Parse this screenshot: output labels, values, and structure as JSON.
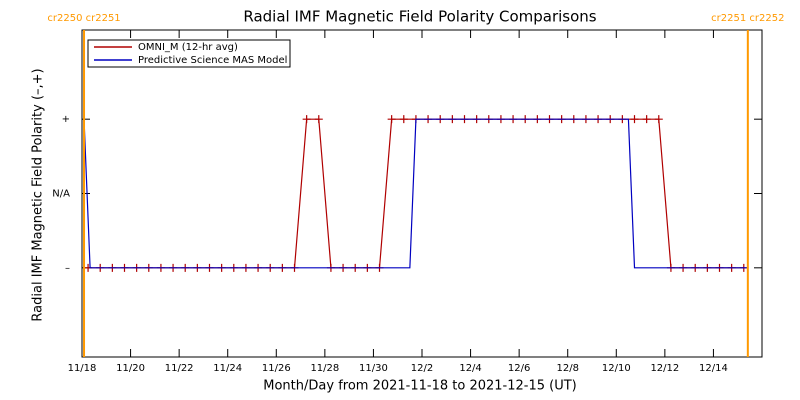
{
  "chart_data": {
    "type": "line",
    "title": "Radial IMF Magnetic Field Polarity Comparisons",
    "xlabel": "Month/Day from 2021-11-18 to 2021-12-15 (UT)",
    "ylabel": "Radial IMF Magnetic Field Polarity (–,+)",
    "xlim": [
      "2021-11-18 00:00",
      "2021-12-16 00:00"
    ],
    "xticks": [
      {
        "value": "2021-11-18 00:00",
        "label": "11/18"
      },
      {
        "value": "2021-11-20 00:00",
        "label": "11/20"
      },
      {
        "value": "2021-11-22 00:00",
        "label": "11/22"
      },
      {
        "value": "2021-11-24 00:00",
        "label": "11/24"
      },
      {
        "value": "2021-11-26 00:00",
        "label": "11/26"
      },
      {
        "value": "2021-11-28 00:00",
        "label": "11/28"
      },
      {
        "value": "2021-11-30 00:00",
        "label": "11/30"
      },
      {
        "value": "2021-12-02 00:00",
        "label": "12/2"
      },
      {
        "value": "2021-12-04 00:00",
        "label": "12/4"
      },
      {
        "value": "2021-12-06 00:00",
        "label": "12/6"
      },
      {
        "value": "2021-12-08 00:00",
        "label": "12/8"
      },
      {
        "value": "2021-12-10 00:00",
        "label": "12/10"
      },
      {
        "value": "2021-12-12 00:00",
        "label": "12/12"
      },
      {
        "value": "2021-12-14 00:00",
        "label": "12/14"
      }
    ],
    "ylim": [
      -2.2,
      2.2
    ],
    "yticks": [
      {
        "value": 1,
        "label": "+"
      },
      {
        "value": 0,
        "label": "N/A"
      },
      {
        "value": -1,
        "label": "–"
      }
    ],
    "legend": "upper left",
    "series": [
      {
        "name": "OMNI_M (12-hr avg)",
        "color": "#b00000",
        "marker": "+",
        "x": [
          "2021-11-18 06:00",
          "2021-11-18 18:00",
          "2021-11-19 06:00",
          "2021-11-19 18:00",
          "2021-11-20 06:00",
          "2021-11-20 18:00",
          "2021-11-21 06:00",
          "2021-11-21 18:00",
          "2021-11-22 06:00",
          "2021-11-22 18:00",
          "2021-11-23 06:00",
          "2021-11-23 18:00",
          "2021-11-24 06:00",
          "2021-11-24 18:00",
          "2021-11-25 06:00",
          "2021-11-25 18:00",
          "2021-11-26 06:00",
          "2021-11-26 18:00",
          "2021-11-27 06:00",
          "2021-11-27 18:00",
          "2021-11-28 06:00",
          "2021-11-28 18:00",
          "2021-11-29 06:00",
          "2021-11-29 18:00",
          "2021-11-30 06:00",
          "2021-11-30 18:00",
          "2021-12-01 06:00",
          "2021-12-01 18:00",
          "2021-12-02 06:00",
          "2021-12-02 18:00",
          "2021-12-03 06:00",
          "2021-12-03 18:00",
          "2021-12-04 06:00",
          "2021-12-04 18:00",
          "2021-12-05 06:00",
          "2021-12-05 18:00",
          "2021-12-06 06:00",
          "2021-12-06 18:00",
          "2021-12-07 06:00",
          "2021-12-07 18:00",
          "2021-12-08 06:00",
          "2021-12-08 18:00",
          "2021-12-09 06:00",
          "2021-12-09 18:00",
          "2021-12-10 06:00",
          "2021-12-10 18:00",
          "2021-12-11 06:00",
          "2021-12-11 18:00",
          "2021-12-12 06:00",
          "2021-12-12 18:00",
          "2021-12-13 06:00",
          "2021-12-13 18:00",
          "2021-12-14 06:00",
          "2021-12-14 18:00",
          "2021-12-15 06:00"
        ],
        "values": [
          -1,
          -1,
          -1,
          -1,
          -1,
          -1,
          -1,
          -1,
          -1,
          -1,
          -1,
          -1,
          -1,
          -1,
          -1,
          -1,
          -1,
          -1,
          1,
          1,
          -1,
          -1,
          -1,
          -1,
          -1,
          1,
          1,
          1,
          1,
          1,
          1,
          1,
          1,
          1,
          1,
          1,
          1,
          1,
          1,
          1,
          1,
          1,
          1,
          1,
          1,
          1,
          1,
          1,
          -1,
          -1,
          -1,
          -1,
          -1,
          -1,
          -1
        ]
      },
      {
        "name": "Predictive Science MAS Model",
        "color": "#0000c0",
        "x": [
          "2021-11-18 02:00",
          "2021-11-18 08:00",
          "2021-12-01 12:00",
          "2021-12-01 18:00",
          "2021-12-10 12:00",
          "2021-12-10 18:00",
          "2021-12-15 09:00"
        ],
        "values": [
          1,
          -1,
          -1,
          1,
          1,
          -1,
          -1
        ]
      }
    ],
    "annotations": [
      {
        "x": "2021-11-18 02:00",
        "label": "cr2250 cr2251",
        "color": "#ff9900"
      },
      {
        "x": "2021-12-15 10:00",
        "label": "cr2251 cr2252",
        "color": "#ff9900"
      }
    ]
  }
}
